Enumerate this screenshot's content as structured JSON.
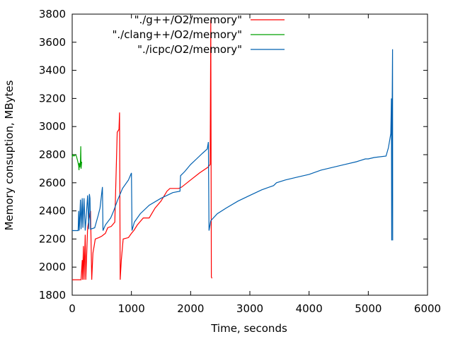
{
  "chart_data": {
    "type": "line",
    "title": "",
    "xlabel": "Time, seconds",
    "ylabel": "Memory consuption, MBytes",
    "xlim": [
      0,
      6000
    ],
    "ylim": [
      1800,
      3800
    ],
    "xticks": [
      0,
      1000,
      2000,
      3000,
      4000,
      5000,
      6000
    ],
    "yticks": [
      1800,
      2000,
      2200,
      2400,
      2600,
      2800,
      3000,
      3200,
      3400,
      3600,
      3800
    ],
    "grid": false,
    "legend_position": "top-right",
    "series": [
      {
        "name": "\"./g++/O2/memory\"",
        "color": "#ff0000",
        "points": [
          [
            0,
            1910
          ],
          [
            150,
            1910
          ],
          [
            170,
            2050
          ],
          [
            175,
            1910
          ],
          [
            190,
            2150
          ],
          [
            200,
            1910
          ],
          [
            220,
            2230
          ],
          [
            230,
            1910
          ],
          [
            260,
            2280
          ],
          [
            280,
            2330
          ],
          [
            310,
            2400
          ],
          [
            330,
            1910
          ],
          [
            350,
            2100
          ],
          [
            370,
            2150
          ],
          [
            390,
            2200
          ],
          [
            450,
            2210
          ],
          [
            500,
            2220
          ],
          [
            560,
            2240
          ],
          [
            600,
            2280
          ],
          [
            660,
            2290
          ],
          [
            720,
            2320
          ],
          [
            760,
            2960
          ],
          [
            790,
            2980
          ],
          [
            800,
            3100
          ],
          [
            810,
            1910
          ],
          [
            830,
            2050
          ],
          [
            860,
            2200
          ],
          [
            950,
            2210
          ],
          [
            1000,
            2240
          ],
          [
            1040,
            2260
          ],
          [
            1100,
            2300
          ],
          [
            1200,
            2350
          ],
          [
            1300,
            2350
          ],
          [
            1400,
            2420
          ],
          [
            1500,
            2470
          ],
          [
            1600,
            2540
          ],
          [
            1650,
            2560
          ],
          [
            1750,
            2560
          ],
          [
            1800,
            2560
          ],
          [
            1850,
            2570
          ],
          [
            2000,
            2620
          ],
          [
            2150,
            2670
          ],
          [
            2290,
            2710
          ],
          [
            2330,
            2730
          ],
          [
            2340,
            3760
          ],
          [
            2350,
            1930
          ],
          [
            2360,
            1920
          ]
        ]
      },
      {
        "name": "\"./clang++/O2/memory\"",
        "color": "#00a000",
        "points": [
          [
            0,
            2780
          ],
          [
            10,
            2800
          ],
          [
            30,
            2790
          ],
          [
            50,
            2800
          ],
          [
            70,
            2790
          ],
          [
            90,
            2760
          ],
          [
            100,
            2740
          ],
          [
            110,
            2720
          ],
          [
            115,
            2690
          ],
          [
            120,
            2740
          ],
          [
            130,
            2710
          ],
          [
            140,
            2760
          ],
          [
            145,
            2860
          ],
          [
            150,
            2700
          ],
          [
            160,
            2750
          ]
        ]
      },
      {
        "name": "\"./icpc/O2/memory\"",
        "color": "#0060b0",
        "points": [
          [
            0,
            2260
          ],
          [
            100,
            2260
          ],
          [
            110,
            2400
          ],
          [
            120,
            2260
          ],
          [
            140,
            2480
          ],
          [
            150,
            2270
          ],
          [
            170,
            2490
          ],
          [
            180,
            2280
          ],
          [
            200,
            2490
          ],
          [
            220,
            2260
          ],
          [
            260,
            2510
          ],
          [
            280,
            2270
          ],
          [
            290,
            2520
          ],
          [
            300,
            2490
          ],
          [
            310,
            2270
          ],
          [
            380,
            2280
          ],
          [
            440,
            2370
          ],
          [
            470,
            2420
          ],
          [
            510,
            2570
          ],
          [
            520,
            2260
          ],
          [
            560,
            2300
          ],
          [
            650,
            2350
          ],
          [
            700,
            2400
          ],
          [
            760,
            2470
          ],
          [
            850,
            2560
          ],
          [
            950,
            2620
          ],
          [
            1000,
            2670
          ],
          [
            1010,
            2260
          ],
          [
            1050,
            2320
          ],
          [
            1150,
            2380
          ],
          [
            1300,
            2440
          ],
          [
            1500,
            2490
          ],
          [
            1700,
            2530
          ],
          [
            1820,
            2540
          ],
          [
            1830,
            2650
          ],
          [
            1900,
            2680
          ],
          [
            2000,
            2730
          ],
          [
            2100,
            2770
          ],
          [
            2200,
            2810
          ],
          [
            2280,
            2840
          ],
          [
            2300,
            2890
          ],
          [
            2310,
            2260
          ],
          [
            2340,
            2330
          ],
          [
            2450,
            2380
          ],
          [
            2600,
            2420
          ],
          [
            2800,
            2470
          ],
          [
            3000,
            2510
          ],
          [
            3200,
            2550
          ],
          [
            3400,
            2580
          ],
          [
            3450,
            2600
          ],
          [
            3600,
            2620
          ],
          [
            3800,
            2640
          ],
          [
            4000,
            2660
          ],
          [
            4200,
            2690
          ],
          [
            4400,
            2710
          ],
          [
            4600,
            2730
          ],
          [
            4800,
            2750
          ],
          [
            4950,
            2770
          ],
          [
            5000,
            2770
          ],
          [
            5100,
            2780
          ],
          [
            5300,
            2790
          ],
          [
            5340,
            2850
          ],
          [
            5380,
            2950
          ],
          [
            5390,
            3200
          ],
          [
            5395,
            2190
          ],
          [
            5400,
            2980
          ],
          [
            5410,
            3550
          ],
          [
            5412,
            2190
          ]
        ]
      }
    ]
  }
}
